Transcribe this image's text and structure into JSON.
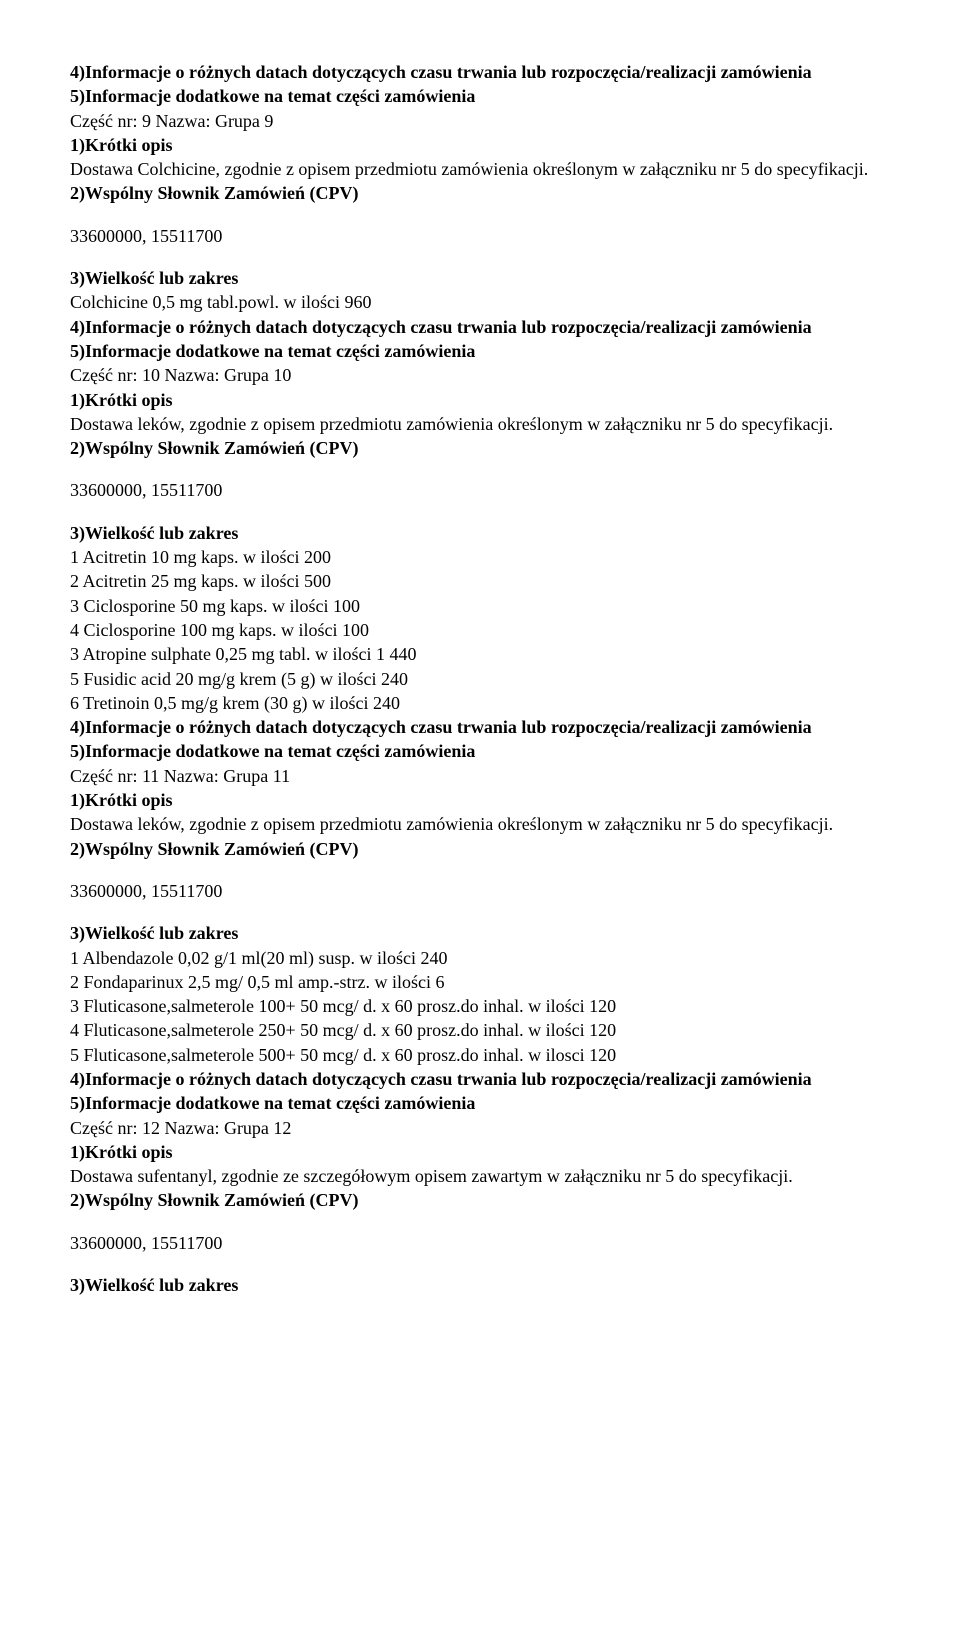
{
  "lines": [
    {
      "text": "4)Informacje o różnych datach dotyczących czasu trwania lub rozpoczęcia/realizacji zamówienia",
      "bold": true
    },
    {
      "text": "5)Informacje dodatkowe na temat części zamówienia",
      "bold": true
    },
    {
      "text": "Część nr: 9 Nazwa: Grupa 9",
      "bold": false
    },
    {
      "text": "1)Krótki opis",
      "bold": true
    },
    {
      "text": "Dostawa Colchicine, zgodnie z opisem przedmiotu zamówienia określonym w załączniku nr 5 do specyfikacji.",
      "bold": false
    },
    {
      "text": "2)Wspólny Słownik Zamówień (CPV)",
      "bold": true
    },
    {
      "text": "33600000, 15511700",
      "bold": false,
      "spaced": true
    },
    {
      "text": "3)Wielkość lub zakres",
      "bold": true
    },
    {
      "text": "Colchicine 0,5 mg tabl.powl. w ilości 960",
      "bold": false
    },
    {
      "text": "4)Informacje o różnych datach dotyczących czasu trwania lub rozpoczęcia/realizacji zamówienia",
      "bold": true
    },
    {
      "text": "5)Informacje dodatkowe na temat części zamówienia",
      "bold": true
    },
    {
      "text": "Część nr: 10 Nazwa: Grupa 10",
      "bold": false
    },
    {
      "text": "1)Krótki opis",
      "bold": true
    },
    {
      "text": "Dostawa leków, zgodnie z opisem przedmiotu zamówienia określonym w załączniku nr 5 do specyfikacji.",
      "bold": false
    },
    {
      "text": "2)Wspólny Słownik Zamówień (CPV)",
      "bold": true
    },
    {
      "text": "33600000, 15511700",
      "bold": false,
      "spaced": true
    },
    {
      "text": "3)Wielkość lub zakres",
      "bold": true
    },
    {
      "text": "1 Acitretin 10 mg kaps. w ilości 200",
      "bold": false
    },
    {
      "text": "2 Acitretin 25 mg kaps. w ilości 500",
      "bold": false
    },
    {
      "text": "3 Ciclosporine 50 mg kaps. w ilości 100",
      "bold": false
    },
    {
      "text": "4 Ciclosporine 100 mg kaps. w ilości 100",
      "bold": false
    },
    {
      "text": "3 Atropine sulphate 0,25 mg tabl. w ilości 1 440",
      "bold": false
    },
    {
      "text": "5 Fusidic acid 20 mg/g krem (5 g) w ilości 240",
      "bold": false
    },
    {
      "text": "6 Tretinoin 0,5 mg/g krem (30 g) w ilości 240",
      "bold": false
    },
    {
      "text": "4)Informacje o różnych datach dotyczących czasu trwania lub rozpoczęcia/realizacji zamówienia",
      "bold": true
    },
    {
      "text": "5)Informacje dodatkowe na temat części zamówienia",
      "bold": true
    },
    {
      "text": "Część nr: 11 Nazwa: Grupa 11",
      "bold": false
    },
    {
      "text": "1)Krótki opis",
      "bold": true
    },
    {
      "text": "Dostawa leków, zgodnie z opisem przedmiotu zamówienia określonym w załączniku nr 5 do specyfikacji.",
      "bold": false
    },
    {
      "text": "2)Wspólny Słownik Zamówień (CPV)",
      "bold": true
    },
    {
      "text": "33600000, 15511700",
      "bold": false,
      "spaced": true
    },
    {
      "text": "3)Wielkość lub zakres",
      "bold": true
    },
    {
      "text": "1 Albendazole 0,02 g/1 ml(20 ml) susp. w ilości 240",
      "bold": false
    },
    {
      "text": "2 Fondaparinux 2,5 mg/ 0,5 ml amp.-strz. w ilości 6",
      "bold": false
    },
    {
      "text": "3 Fluticasone,salmeterole 100+ 50 mcg/ d. x 60 prosz.do inhal. w ilości 120",
      "bold": false
    },
    {
      "text": "4 Fluticasone,salmeterole 250+ 50 mcg/ d. x 60 prosz.do inhal. w ilości 120",
      "bold": false
    },
    {
      "text": "5 Fluticasone,salmeterole 500+ 50 mcg/ d. x 60 prosz.do inhal. w ilosci 120",
      "bold": false
    },
    {
      "text": "4)Informacje o różnych datach dotyczących czasu trwania lub rozpoczęcia/realizacji zamówienia",
      "bold": true
    },
    {
      "text": "5)Informacje dodatkowe na temat części zamówienia",
      "bold": true
    },
    {
      "text": "Część nr: 12 Nazwa: Grupa 12",
      "bold": false
    },
    {
      "text": "1)Krótki opis",
      "bold": true
    },
    {
      "text": "Dostawa sufentanyl, zgodnie ze szczegółowym opisem zawartym w załączniku nr 5 do specyfikacji.",
      "bold": false
    },
    {
      "text": "2)Wspólny Słownik Zamówień (CPV)",
      "bold": true
    },
    {
      "text": "33600000, 15511700",
      "bold": false,
      "spaced": true
    },
    {
      "text": "3)Wielkość lub zakres",
      "bold": true
    }
  ]
}
